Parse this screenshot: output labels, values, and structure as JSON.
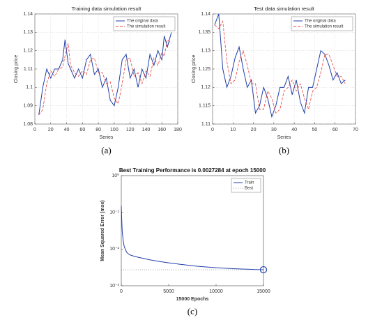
{
  "chart_data": [
    {
      "type": "line",
      "title": "Training data simulation result",
      "xlabel": "Series",
      "ylabel": "Closing price",
      "label": "(a)",
      "x": [
        5,
        10,
        15,
        20,
        25,
        30,
        35,
        38,
        42,
        45,
        50,
        55,
        60,
        65,
        70,
        75,
        80,
        85,
        90,
        95,
        100,
        105,
        110,
        115,
        120,
        125,
        130,
        135,
        140,
        145,
        150,
        155,
        160,
        163,
        167,
        172
      ],
      "series": [
        {
          "name": "The original data",
          "color": "#1f3fa8",
          "linestyle": "solid",
          "values": [
            1.085,
            1.1,
            1.11,
            1.105,
            1.11,
            1.11,
            1.115,
            1.126,
            1.113,
            1.11,
            1.105,
            1.11,
            1.105,
            1.115,
            1.118,
            1.107,
            1.11,
            1.1,
            1.105,
            1.093,
            1.09,
            1.1,
            1.115,
            1.118,
            1.105,
            1.11,
            1.1,
            1.11,
            1.105,
            1.118,
            1.112,
            1.12,
            1.115,
            1.128,
            1.122,
            1.13
          ]
        },
        {
          "name": "The simulation result",
          "color": "#e8413c",
          "linestyle": "dashed",
          "values": [
            1.085,
            1.088,
            1.102,
            1.109,
            1.106,
            1.11,
            1.111,
            1.117,
            1.124,
            1.112,
            1.108,
            1.106,
            1.109,
            1.107,
            1.115,
            1.116,
            1.108,
            1.108,
            1.102,
            1.103,
            1.094,
            1.091,
            1.102,
            1.115,
            1.116,
            1.106,
            1.108,
            1.102,
            1.109,
            1.106,
            1.116,
            1.112,
            1.119,
            1.117,
            1.126,
            1.124
          ]
        }
      ],
      "xlim": [
        0,
        180
      ],
      "xticks": [
        0,
        20,
        40,
        60,
        80,
        100,
        120,
        140,
        160,
        180
      ],
      "ylim": [
        1.08,
        1.14
      ],
      "yticks": [
        1.08,
        1.09,
        1.1,
        1.11,
        1.12,
        1.13,
        1.14
      ],
      "grid": true,
      "legend": "top-right"
    },
    {
      "type": "line",
      "title": "Test data simulation result",
      "xlabel": "Series",
      "ylabel": "Closing price",
      "label": "(b)",
      "x": [
        1,
        3,
        5,
        7,
        9,
        11,
        13,
        15,
        17,
        19,
        21,
        23,
        25,
        27,
        29,
        31,
        33,
        35,
        37,
        39,
        41,
        43,
        45,
        47,
        49,
        51,
        53,
        55,
        57,
        59,
        61,
        63,
        65
      ],
      "series": [
        {
          "name": "The original data",
          "color": "#1f3fa8",
          "linestyle": "solid",
          "values": [
            1.137,
            1.14,
            1.125,
            1.12,
            1.123,
            1.128,
            1.131,
            1.125,
            1.12,
            1.122,
            1.113,
            1.115,
            1.12,
            1.117,
            1.112,
            1.115,
            1.12,
            1.12,
            1.123,
            1.118,
            1.122,
            1.116,
            1.113,
            1.12,
            1.12,
            1.125,
            1.13,
            1.129,
            1.126,
            1.122,
            1.124,
            1.121,
            1.122
          ]
        },
        {
          "name": "The simulation result",
          "color": "#e8413c",
          "linestyle": "dashed",
          "values": [
            1.137,
            1.136,
            1.138,
            1.127,
            1.121,
            1.122,
            1.127,
            1.13,
            1.126,
            1.121,
            1.121,
            1.114,
            1.114,
            1.119,
            1.117,
            1.113,
            1.114,
            1.119,
            1.12,
            1.122,
            1.119,
            1.121,
            1.117,
            1.114,
            1.119,
            1.12,
            1.124,
            1.129,
            1.129,
            1.126,
            1.123,
            1.123,
            1.121
          ]
        }
      ],
      "xlim": [
        0,
        70
      ],
      "xticks": [
        0,
        10,
        20,
        30,
        40,
        50,
        60,
        70
      ],
      "ylim": [
        1.11,
        1.14
      ],
      "yticks": [
        1.11,
        1.115,
        1.12,
        1.125,
        1.13,
        1.135,
        1.14
      ],
      "grid": true,
      "legend": "top-right"
    },
    {
      "type": "line",
      "title": "Best Training Performance is 0.0027284 at epoch 15000",
      "xlabel": "15000 Epochs",
      "ylabel": "Mean Squared Error  (mse)",
      "label": "(c)",
      "log_y": true,
      "series": [
        {
          "name": "Train",
          "color": "#1f3fa8",
          "linestyle": "solid",
          "x": [
            0,
            50,
            100,
            200,
            300,
            450,
            600,
            800,
            1000,
            1500,
            2000,
            3000,
            4000,
            5000,
            6000,
            8000,
            10000,
            12000,
            14000,
            15000
          ],
          "values": [
            0.15,
            0.06,
            0.03,
            0.017,
            0.012,
            0.0095,
            0.008,
            0.0072,
            0.0068,
            0.0062,
            0.0058,
            0.0051,
            0.0046,
            0.0042,
            0.0039,
            0.0034,
            0.0031,
            0.0029,
            0.00278,
            0.0027284
          ]
        },
        {
          "name": "Best",
          "color": "#999999",
          "linestyle": "dotted",
          "x": [
            0,
            15000
          ],
          "values": [
            0.0027284,
            0.0027284
          ]
        }
      ],
      "best": {
        "epoch": 15000,
        "value": 0.0027284
      },
      "xlim": [
        0,
        15000
      ],
      "xticks": [
        0,
        5000,
        10000,
        15000
      ],
      "ylim": [
        0.001,
        1
      ],
      "yticks": [
        {
          "value": 0.001,
          "label": "10⁻³"
        },
        {
          "value": 0.01,
          "label": "10⁻²"
        },
        {
          "value": 0.1,
          "label": "10⁻¹"
        },
        {
          "value": 1,
          "label": "10⁰"
        }
      ],
      "grid": false,
      "legend": "top-right"
    }
  ]
}
